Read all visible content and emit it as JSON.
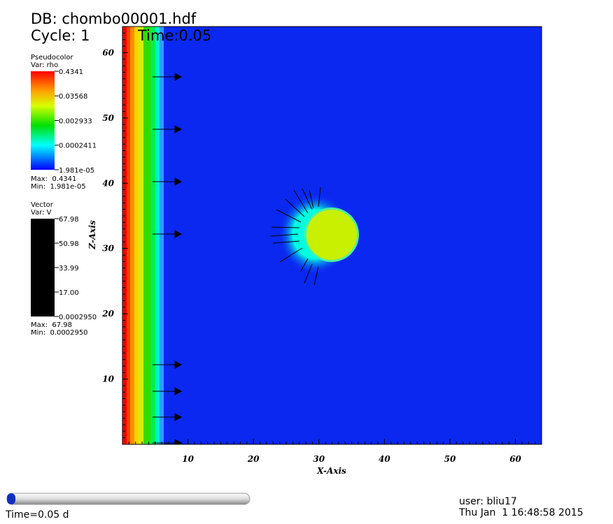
{
  "header": {
    "database": "DB: chombo00001.hdf",
    "cycle": "Cycle: 1",
    "time": "Time:0.05"
  },
  "chart_data": {
    "type": "pseudocolor",
    "xlabel": "X-Axis",
    "ylabel": "Z-Axis",
    "xlim": [
      0,
      64
    ],
    "ylim": [
      0,
      64
    ],
    "xticks": [
      10,
      20,
      30,
      40,
      50,
      60
    ],
    "yticks": [
      10,
      20,
      30,
      40,
      50,
      60
    ]
  },
  "pseudocolor_legend": {
    "title": "Pseudocolor",
    "var": "Var: rho",
    "log": true,
    "ticks": [
      0.4341,
      0.03568,
      0.002933,
      0.0002411,
      {
        "value": 1.981e-05,
        "label": "1.981e-05"
      }
    ],
    "max": "Max:  0.4341",
    "min": "Min:  1.981e-05"
  },
  "vector_legend": {
    "title": "Vector",
    "var": "Var: V",
    "color": "#000000",
    "ticks": [
      67.98,
      50.98,
      33.99,
      {
        "value": 17,
        "label": "17.00"
      },
      {
        "value": 0.000295,
        "label": "0.0002950"
      }
    ],
    "max": "Max:  67.98",
    "min": "Min:  0.0002950"
  },
  "footer": {
    "time": "Time=0.05 d",
    "user": "user: bliu17",
    "date": "Thu Jan  1 16:48:58 2015"
  }
}
